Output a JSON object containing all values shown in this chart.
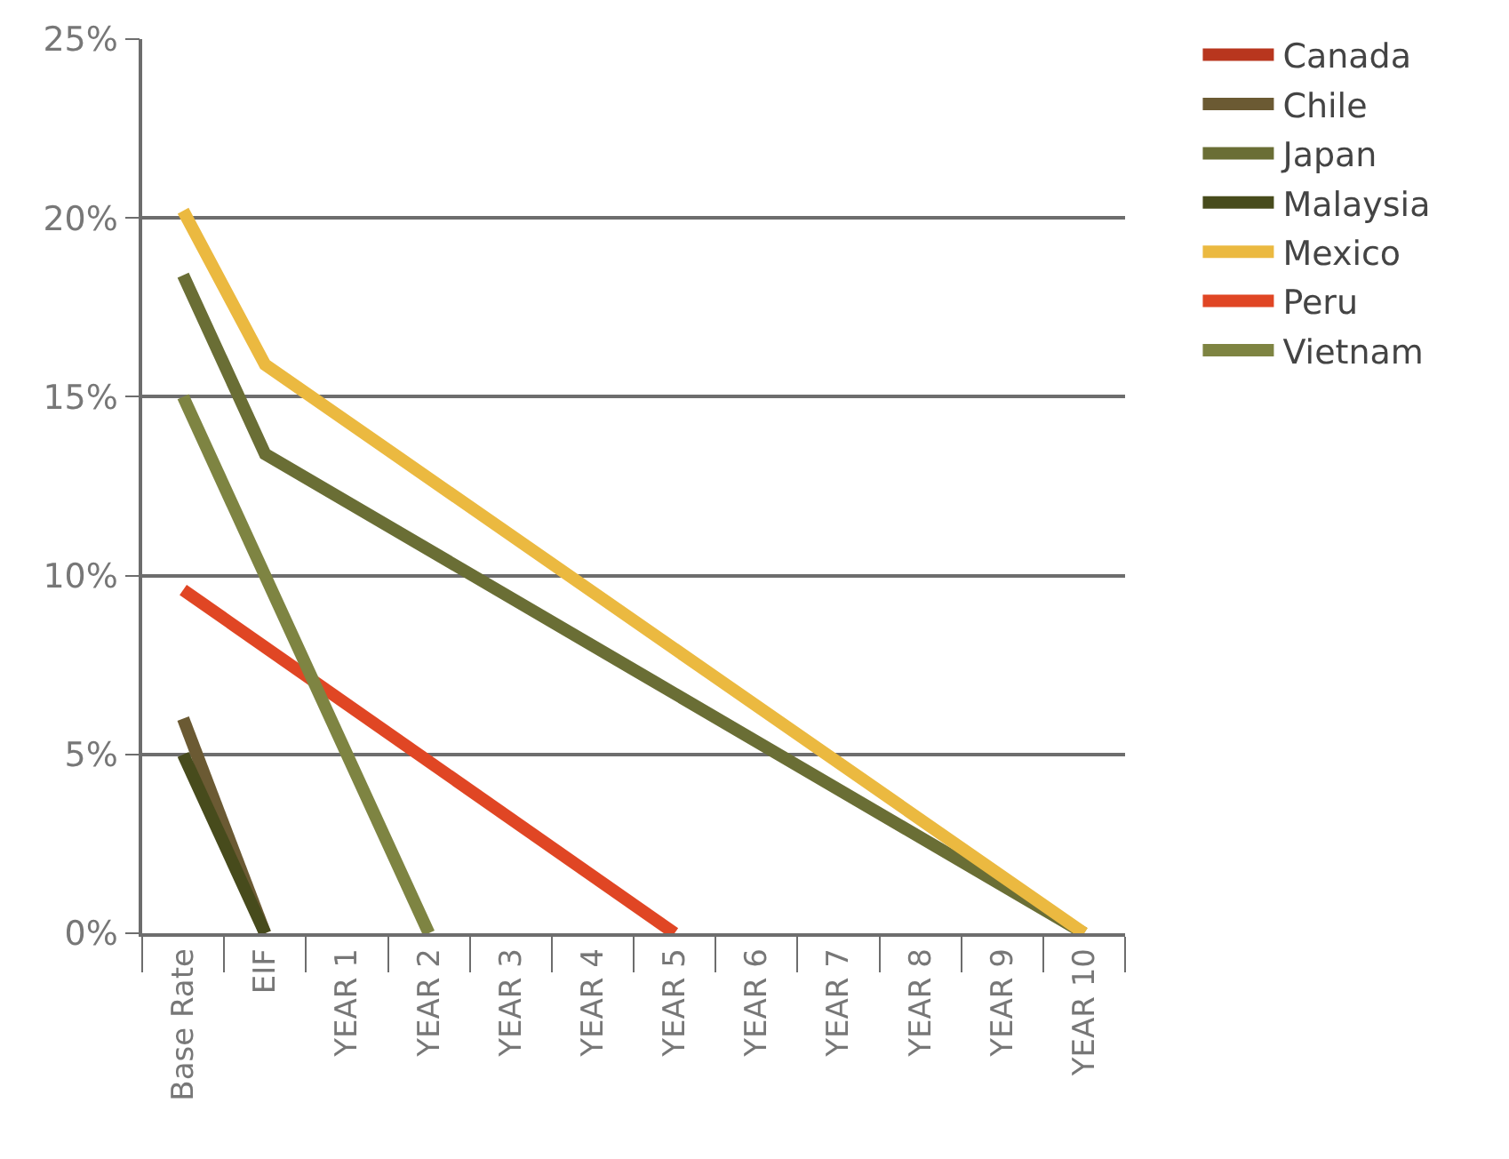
{
  "chart_data": {
    "type": "line",
    "categories": [
      "Base Rate",
      "EIF",
      "YEAR 1",
      "YEAR 2",
      "YEAR 3",
      "YEAR 4",
      "YEAR 5",
      "YEAR 6",
      "YEAR 7",
      "YEAR 8",
      "YEAR 9",
      "YEAR 10"
    ],
    "series": [
      {
        "name": "Canada",
        "color": "#b8361e",
        "values": [
          null,
          null,
          null,
          null,
          null,
          null,
          null,
          null,
          null,
          null,
          null,
          null
        ]
      },
      {
        "name": "Chile",
        "color": "#6b5a33",
        "values": [
          6.0,
          0,
          null,
          null,
          null,
          null,
          null,
          null,
          null,
          null,
          null,
          null
        ]
      },
      {
        "name": "Japan",
        "color": "#6a6e35",
        "values": [
          18.4,
          13.4,
          null,
          null,
          null,
          null,
          null,
          null,
          null,
          null,
          null,
          0
        ]
      },
      {
        "name": "Malaysia",
        "color": "#474b1c",
        "values": [
          5.0,
          0,
          null,
          null,
          null,
          null,
          null,
          null,
          null,
          null,
          null,
          null
        ]
      },
      {
        "name": "Mexico",
        "color": "#ebb940",
        "values": [
          20.2,
          15.9,
          null,
          null,
          null,
          null,
          null,
          null,
          null,
          null,
          null,
          0
        ]
      },
      {
        "name": "Peru",
        "color": "#e04624",
        "values": [
          9.6,
          null,
          null,
          null,
          null,
          null,
          0,
          null,
          null,
          null,
          null,
          null
        ]
      },
      {
        "name": "Vietnam",
        "color": "#7e8442",
        "values": [
          15.0,
          null,
          null,
          0,
          null,
          null,
          null,
          null,
          null,
          null,
          null,
          null
        ]
      }
    ],
    "ylim": [
      0,
      25
    ],
    "yticks": [
      {
        "value": 0,
        "label": "0%"
      },
      {
        "value": 5,
        "label": "5%"
      },
      {
        "value": 10,
        "label": "10%"
      },
      {
        "value": 15,
        "label": "15%"
      },
      {
        "value": 20,
        "label": "20%"
      },
      {
        "value": 25,
        "label": "25%"
      }
    ],
    "grid": "y",
    "legend": "top right",
    "marker": "none",
    "line_style": "solid"
  }
}
